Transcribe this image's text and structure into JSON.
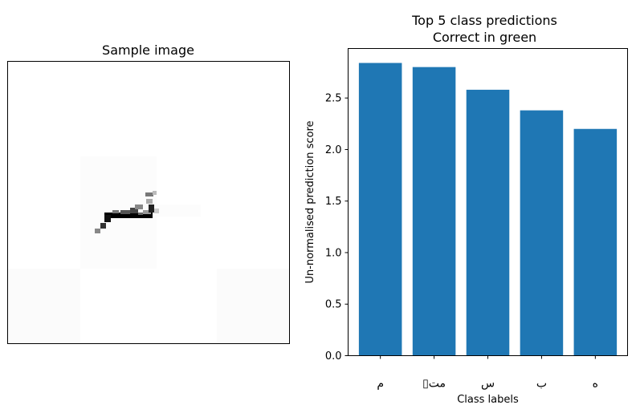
{
  "left_panel": {
    "title": "Sample image"
  },
  "chart_data": {
    "type": "bar",
    "title": "Top 5 class predictions\nCorrect in green",
    "title_lines": [
      "Top 5 class predictions",
      "Correct in green"
    ],
    "xlabel": "Class labels",
    "ylabel": "Un-normalised prediction score",
    "categories": [
      "م",
      "مت",
      "س",
      "ب",
      "ه"
    ],
    "category_display": [
      "م",
      "▯مت",
      "س",
      "ب",
      "ه"
    ],
    "values": [
      2.84,
      2.8,
      2.58,
      2.38,
      2.2
    ],
    "ylim": [
      0,
      2.98
    ],
    "yticks": [
      0.0,
      0.5,
      1.0,
      1.5,
      2.0,
      2.5
    ],
    "ytick_labels": [
      "0.0",
      "0.5",
      "1.0",
      "1.5",
      "2.0",
      "2.5"
    ],
    "grid": false,
    "bar_color": "#1f77b4",
    "correct_color": "#2ca02c"
  }
}
